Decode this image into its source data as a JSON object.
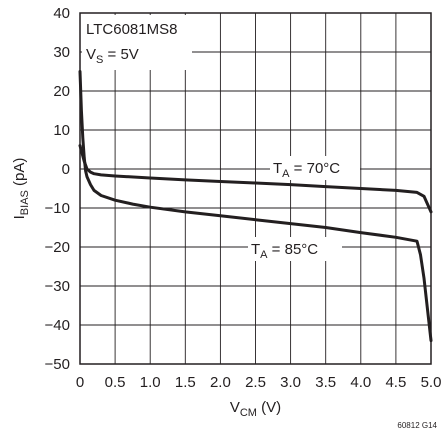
{
  "chart_data": {
    "type": "line",
    "xlabel": {
      "main": "V",
      "sub": "CM",
      "suffix": " (V)"
    },
    "ylabel": {
      "main": "I",
      "sub": "BIAS",
      "suffix": " (pA)"
    },
    "xlim": [
      0,
      5.0
    ],
    "ylim": [
      -50,
      40
    ],
    "x_ticks": [
      "0",
      "0.5",
      "1.0",
      "1.5",
      "2.0",
      "2.5",
      "3.0",
      "3.5",
      "4.0",
      "4.5",
      "5.0"
    ],
    "y_ticks": [
      "40",
      "30",
      "20",
      "10",
      "0",
      "−10",
      "−20",
      "−30",
      "−40",
      "−50"
    ],
    "grid": true,
    "annotations": {
      "device": "LTC6081MS8",
      "supply": {
        "main": "V",
        "sub": "S",
        "suffix": " = 5V"
      },
      "curve_70": {
        "main": "T",
        "sub": "A",
        "suffix": " = 70°C"
      },
      "curve_85": {
        "main": "T",
        "sub": "A",
        "suffix": " = 85°C"
      }
    },
    "figure_id": "60812 G14",
    "series": [
      {
        "label_key": "curve_70",
        "x": [
          0,
          0.03,
          0.06,
          0.1,
          0.15,
          0.2,
          0.3,
          0.5,
          1.0,
          1.5,
          2.0,
          2.5,
          3.0,
          3.5,
          4.0,
          4.5,
          4.8,
          4.9,
          4.95,
          5.0
        ],
        "y": [
          6,
          4,
          2,
          0,
          -0.8,
          -1.2,
          -1.5,
          -1.8,
          -2.3,
          -2.8,
          -3.2,
          -3.6,
          -4.0,
          -4.5,
          -5.0,
          -5.5,
          -6,
          -7,
          -9,
          -11
        ]
      },
      {
        "label_key": "curve_85",
        "x": [
          0,
          0.02,
          0.04,
          0.06,
          0.08,
          0.1,
          0.15,
          0.2,
          0.3,
          0.5,
          0.75,
          1.0,
          1.5,
          2.0,
          2.5,
          3.0,
          3.5,
          4.0,
          4.5,
          4.8,
          4.85,
          4.9,
          4.95,
          5.0
        ],
        "y": [
          25,
          15,
          8,
          3,
          -0.5,
          -2,
          -4,
          -5.5,
          -6.8,
          -8,
          -9,
          -9.8,
          -11,
          -12,
          -13,
          -14,
          -15,
          -16.3,
          -17.5,
          -18.5,
          -22,
          -28,
          -36,
          -44
        ]
      }
    ]
  }
}
